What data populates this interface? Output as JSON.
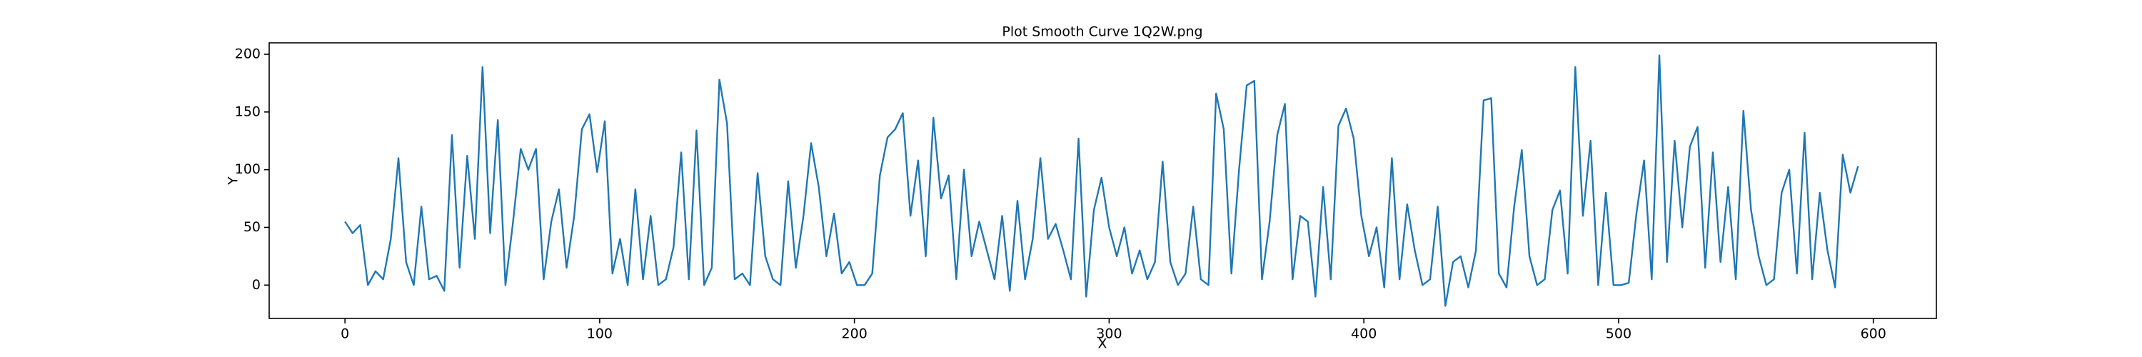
{
  "chart_data": {
    "type": "line",
    "title": "Plot Smooth Curve 1Q2W.png",
    "xlabel": "X",
    "ylabel": "Y",
    "color": "#1f77b4",
    "x": [
      0,
      3,
      6,
      9,
      12,
      15,
      18,
      21,
      24,
      27,
      30,
      33,
      36,
      39,
      42,
      45,
      48,
      51,
      54,
      57,
      60,
      63,
      66,
      69,
      72,
      75,
      78,
      81,
      84,
      87,
      90,
      93,
      96,
      99,
      102,
      105,
      108,
      111,
      114,
      117,
      120,
      123,
      126,
      129,
      132,
      135,
      138,
      141,
      144,
      147,
      150,
      153,
      156,
      159,
      162,
      165,
      168,
      171,
      174,
      177,
      180,
      183,
      186,
      189,
      192,
      195,
      198,
      201,
      204,
      207,
      210,
      213,
      216,
      219,
      222,
      225,
      228,
      231,
      234,
      237,
      240,
      243,
      246,
      249,
      252,
      255,
      258,
      261,
      264,
      267,
      270,
      273,
      276,
      279,
      282,
      285,
      288,
      291,
      294,
      297,
      300,
      303,
      306,
      309,
      312,
      315,
      318,
      321,
      324,
      327,
      330,
      333,
      336,
      339,
      342,
      345,
      348,
      351,
      354,
      357,
      360,
      363,
      366,
      369,
      372,
      375,
      378,
      381,
      384,
      387,
      390,
      393,
      396,
      399,
      402,
      405,
      408,
      411,
      414,
      417,
      420,
      423,
      426,
      429,
      432,
      435,
      438,
      441,
      444,
      447,
      450,
      453,
      456,
      459,
      462,
      465,
      468,
      471,
      474,
      477,
      480,
      483,
      486,
      489,
      492,
      495,
      498,
      501,
      504,
      507,
      510,
      513,
      516,
      519,
      522,
      525,
      528,
      531,
      534,
      537,
      540,
      543,
      546,
      549,
      552,
      555,
      558,
      561,
      564,
      567,
      570,
      573,
      576,
      579,
      582,
      585,
      588,
      591,
      594
    ],
    "values": [
      55,
      45,
      52,
      0,
      12,
      5,
      40,
      110,
      20,
      0,
      68,
      5,
      8,
      -5,
      130,
      15,
      112,
      40,
      189,
      45,
      143,
      0,
      55,
      118,
      100,
      118,
      5,
      55,
      83,
      15,
      60,
      135,
      148,
      98,
      142,
      10,
      40,
      0,
      83,
      5,
      60,
      0,
      5,
      33,
      115,
      5,
      134,
      0,
      15,
      178,
      140,
      5,
      10,
      0,
      97,
      25,
      5,
      0,
      90,
      15,
      60,
      123,
      85,
      25,
      62,
      10,
      20,
      0,
      0,
      10,
      95,
      128,
      135,
      149,
      60,
      108,
      25,
      145,
      75,
      95,
      5,
      100,
      25,
      55,
      30,
      5,
      60,
      -5,
      73,
      5,
      40,
      110,
      40,
      53,
      30,
      5,
      127,
      -10,
      65,
      93,
      50,
      25,
      50,
      10,
      30,
      5,
      20,
      107,
      20,
      0,
      10,
      68,
      5,
      0,
      166,
      135,
      10,
      100,
      173,
      177,
      5,
      55,
      130,
      157,
      5,
      60,
      55,
      -10,
      85,
      5,
      138,
      153,
      127,
      60,
      25,
      50,
      -2,
      110,
      5,
      70,
      30,
      0,
      5,
      68,
      -18,
      20,
      25,
      -2,
      30,
      160,
      162,
      10,
      -2,
      68,
      117,
      25,
      0,
      5,
      65,
      82,
      10,
      189,
      60,
      125,
      0,
      80,
      0,
      0,
      2,
      62,
      108,
      5,
      199,
      20,
      125,
      50,
      120,
      137,
      15,
      115,
      20,
      85,
      5,
      151,
      65,
      25,
      0,
      5,
      80,
      100,
      10,
      132,
      5,
      80,
      30,
      -2,
      113,
      80,
      103
    ],
    "xlim": [
      -29.75,
      624.75
    ],
    "ylim": [
      -28.9,
      209.9
    ],
    "xticks": [
      0,
      100,
      200,
      300,
      400,
      500,
      600
    ],
    "yticks": [
      0,
      50,
      100,
      150,
      200
    ]
  }
}
